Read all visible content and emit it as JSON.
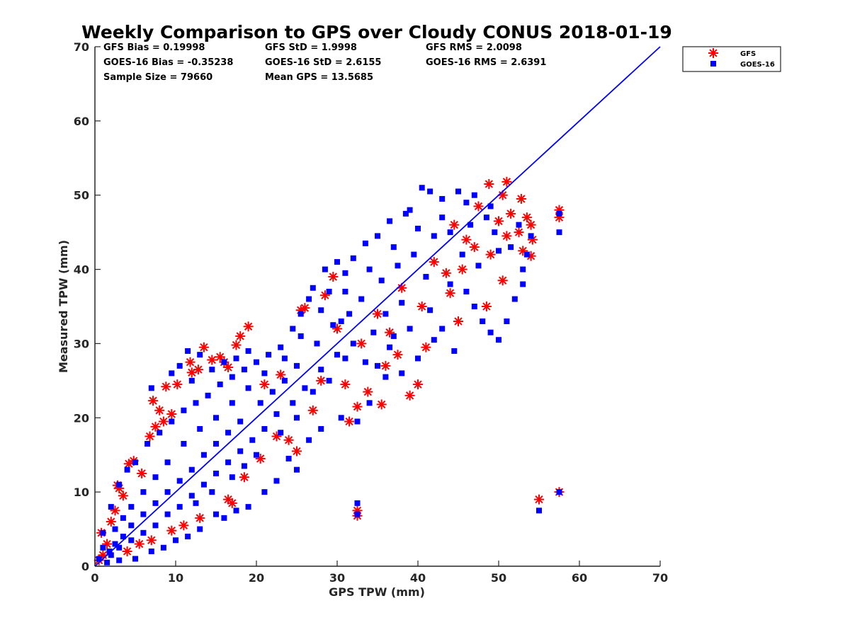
{
  "chart_data": {
    "type": "scatter",
    "title": "Weekly Comparison to GPS over Cloudy CONUS 2018-01-19",
    "xlabel": "GPS TPW (mm)",
    "ylabel": "Measured TPW (mm)",
    "xlim": [
      0,
      70
    ],
    "ylim": [
      0,
      70
    ],
    "xticks": [
      0,
      10,
      20,
      30,
      40,
      50,
      60,
      70
    ],
    "yticks": [
      0,
      10,
      20,
      30,
      40,
      50,
      60,
      70
    ],
    "grid": false,
    "legend_position": "top-right",
    "stats": [
      "GFS Bias = 0.19998",
      "GFS StD = 1.9998",
      "GFS RMS = 2.0098",
      "GOES-16 Bias = -0.35238",
      "GOES-16 StD = 2.6155",
      "GOES-16 RMS = 2.6391",
      "Sample Size = 79660",
      "Mean GPS = 13.5685"
    ],
    "reference_line": {
      "x": [
        0,
        70
      ],
      "y": [
        0,
        70
      ],
      "color": "#0000ff"
    },
    "series": [
      {
        "name": "GFS",
        "marker": "asterisk",
        "color": "#ff0000",
        "points": [
          [
            4.8,
            14.2
          ],
          [
            4.2,
            13.8
          ],
          [
            2.8,
            10.9
          ],
          [
            3.0,
            10.5
          ],
          [
            5.8,
            12.5
          ],
          [
            7.2,
            22.3
          ],
          [
            8.8,
            24.2
          ],
          [
            8.0,
            21.0
          ],
          [
            6.8,
            17.5
          ],
          [
            7.5,
            18.8
          ],
          [
            10.2,
            24.5
          ],
          [
            11.8,
            27.5
          ],
          [
            12.0,
            26.1
          ],
          [
            13.5,
            29.5
          ],
          [
            14.5,
            27.8
          ],
          [
            15.5,
            28.2
          ],
          [
            16.5,
            26.8
          ],
          [
            17.5,
            29.8
          ],
          [
            18.0,
            31.0
          ],
          [
            19.0,
            32.3
          ],
          [
            16.0,
            27.5
          ],
          [
            12.8,
            26.5
          ],
          [
            9.5,
            20.5
          ],
          [
            8.5,
            19.5
          ],
          [
            26.0,
            34.8
          ],
          [
            25.5,
            34.5
          ],
          [
            28.5,
            36.5
          ],
          [
            29.5,
            39.0
          ],
          [
            31.0,
            24.5
          ],
          [
            32.5,
            21.5
          ],
          [
            31.5,
            19.5
          ],
          [
            33.8,
            23.5
          ],
          [
            35.5,
            21.8
          ],
          [
            37.5,
            28.5
          ],
          [
            36.0,
            27.0
          ],
          [
            39.0,
            23.0
          ],
          [
            40.0,
            24.5
          ],
          [
            41.0,
            29.5
          ],
          [
            43.5,
            39.5
          ],
          [
            44.0,
            36.8
          ],
          [
            45.0,
            33.0
          ],
          [
            45.5,
            40.0
          ],
          [
            48.8,
            51.5
          ],
          [
            51.0,
            51.8
          ],
          [
            50.5,
            50.0
          ],
          [
            52.8,
            49.5
          ],
          [
            51.5,
            47.5
          ],
          [
            52.5,
            45.0
          ],
          [
            53.5,
            47.0
          ],
          [
            54.0,
            46.0
          ],
          [
            54.2,
            44.0
          ],
          [
            53.0,
            42.5
          ],
          [
            54.0,
            41.8
          ],
          [
            51.0,
            44.5
          ],
          [
            50.0,
            46.5
          ],
          [
            49.0,
            42.0
          ],
          [
            50.5,
            38.5
          ],
          [
            48.5,
            35.0
          ],
          [
            47.0,
            43.0
          ],
          [
            32.5,
            6.8
          ],
          [
            32.5,
            7.5
          ],
          [
            55.0,
            9.0
          ],
          [
            57.5,
            10.0
          ],
          [
            57.5,
            48.0
          ],
          [
            57.5,
            47.0
          ],
          [
            22.5,
            17.5
          ],
          [
            25.0,
            15.5
          ],
          [
            24.0,
            17.0
          ],
          [
            20.5,
            14.5
          ],
          [
            17.0,
            8.5
          ],
          [
            16.5,
            9.0
          ],
          [
            13.0,
            6.5
          ],
          [
            11.0,
            5.5
          ],
          [
            9.5,
            4.8
          ],
          [
            1.5,
            3.0
          ],
          [
            0.8,
            4.5
          ],
          [
            2.5,
            7.5
          ],
          [
            3.5,
            9.5
          ],
          [
            2.0,
            6.0
          ],
          [
            5.5,
            3.0
          ],
          [
            7.0,
            3.5
          ],
          [
            4.0,
            2.0
          ],
          [
            1.0,
            1.5
          ],
          [
            0.5,
            0.8
          ],
          [
            21.0,
            24.5
          ],
          [
            23.0,
            25.8
          ],
          [
            18.5,
            12.0
          ],
          [
            27.0,
            21.0
          ],
          [
            28.0,
            25.0
          ],
          [
            30.0,
            32.0
          ],
          [
            33.0,
            30.0
          ],
          [
            35.0,
            34.0
          ],
          [
            38.0,
            37.5
          ],
          [
            42.0,
            41.0
          ],
          [
            46.0,
            44.0
          ],
          [
            47.5,
            48.5
          ],
          [
            44.5,
            46.0
          ],
          [
            40.5,
            35.0
          ],
          [
            36.5,
            31.5
          ]
        ]
      },
      {
        "name": "GOES-16",
        "marker": "square",
        "color": "#0000ff",
        "points": [
          [
            40.5,
            51.0
          ],
          [
            41.5,
            50.5
          ],
          [
            43.0,
            49.5
          ],
          [
            45.0,
            50.5
          ],
          [
            47.0,
            50.0
          ],
          [
            38.5,
            47.5
          ],
          [
            36.5,
            46.5
          ],
          [
            35.0,
            44.5
          ],
          [
            33.5,
            43.5
          ],
          [
            32.0,
            41.5
          ],
          [
            31.0,
            39.5
          ],
          [
            29.0,
            37.0
          ],
          [
            27.0,
            37.5
          ],
          [
            28.5,
            40.0
          ],
          [
            30.0,
            41.0
          ],
          [
            26.5,
            36.0
          ],
          [
            25.5,
            34.0
          ],
          [
            24.5,
            32.0
          ],
          [
            23.0,
            29.5
          ],
          [
            21.5,
            28.5
          ],
          [
            20.0,
            27.5
          ],
          [
            18.5,
            26.5
          ],
          [
            17.0,
            25.5
          ],
          [
            15.5,
            24.5
          ],
          [
            14.0,
            23.0
          ],
          [
            12.5,
            22.0
          ],
          [
            11.0,
            21.0
          ],
          [
            9.5,
            19.5
          ],
          [
            8.0,
            18.0
          ],
          [
            6.5,
            16.5
          ],
          [
            5.0,
            14.0
          ],
          [
            4.0,
            13.0
          ],
          [
            3.0,
            11.0
          ],
          [
            2.0,
            8.0
          ],
          [
            1.0,
            4.5
          ],
          [
            7.0,
            24.0
          ],
          [
            9.5,
            26.0
          ],
          [
            10.5,
            27.0
          ],
          [
            11.5,
            29.0
          ],
          [
            13.0,
            28.5
          ],
          [
            12.0,
            25.0
          ],
          [
            14.5,
            26.5
          ],
          [
            16.0,
            27.5
          ],
          [
            17.5,
            28.0
          ],
          [
            19.0,
            29.0
          ],
          [
            46.0,
            37.0
          ],
          [
            47.0,
            35.0
          ],
          [
            48.0,
            33.0
          ],
          [
            49.0,
            31.5
          ],
          [
            50.0,
            30.5
          ],
          [
            51.0,
            33.0
          ],
          [
            52.0,
            36.0
          ],
          [
            53.0,
            38.0
          ],
          [
            53.5,
            42.0
          ],
          [
            54.0,
            44.5
          ],
          [
            43.0,
            32.0
          ],
          [
            44.5,
            29.0
          ],
          [
            42.0,
            30.5
          ],
          [
            40.0,
            28.0
          ],
          [
            38.0,
            26.0
          ],
          [
            36.0,
            25.5
          ],
          [
            34.0,
            22.0
          ],
          [
            32.5,
            19.5
          ],
          [
            30.5,
            20.0
          ],
          [
            28.0,
            18.5
          ],
          [
            26.5,
            17.0
          ],
          [
            25.0,
            13.0
          ],
          [
            24.0,
            14.5
          ],
          [
            22.5,
            11.5
          ],
          [
            21.0,
            10.0
          ],
          [
            19.0,
            8.0
          ],
          [
            17.5,
            7.5
          ],
          [
            16.0,
            6.5
          ],
          [
            15.0,
            7.0
          ],
          [
            13.0,
            5.0
          ],
          [
            11.5,
            4.0
          ],
          [
            10.0,
            3.5
          ],
          [
            8.5,
            2.5
          ],
          [
            7.0,
            2.0
          ],
          [
            5.0,
            1.0
          ],
          [
            3.0,
            0.8
          ],
          [
            1.5,
            0.5
          ],
          [
            0.5,
            1.0
          ],
          [
            32.5,
            8.5
          ],
          [
            32.5,
            7.0
          ],
          [
            55.0,
            7.5
          ],
          [
            57.5,
            10.0
          ],
          [
            57.5,
            45.0
          ],
          [
            57.5,
            47.5
          ],
          [
            53.0,
            40.0
          ],
          [
            51.5,
            43.0
          ],
          [
            49.5,
            45.0
          ],
          [
            48.5,
            47.0
          ],
          [
            46.5,
            46.0
          ],
          [
            44.0,
            45.0
          ],
          [
            42.0,
            44.5
          ],
          [
            39.5,
            42.0
          ],
          [
            37.5,
            40.5
          ],
          [
            35.5,
            38.5
          ],
          [
            33.0,
            36.0
          ],
          [
            31.5,
            34.0
          ],
          [
            29.5,
            32.5
          ],
          [
            27.5,
            30.0
          ],
          [
            25.0,
            27.0
          ],
          [
            23.5,
            25.0
          ],
          [
            22.0,
            23.5
          ],
          [
            20.5,
            22.0
          ],
          [
            18.0,
            19.5
          ],
          [
            16.5,
            18.0
          ],
          [
            15.0,
            16.5
          ],
          [
            13.5,
            15.0
          ],
          [
            12.0,
            13.0
          ],
          [
            10.5,
            11.5
          ],
          [
            9.0,
            10.0
          ],
          [
            7.5,
            8.5
          ],
          [
            6.0,
            7.0
          ],
          [
            4.5,
            5.5
          ],
          [
            3.5,
            4.0
          ],
          [
            2.5,
            3.0
          ],
          [
            1.8,
            2.0
          ],
          [
            45.5,
            42.0
          ],
          [
            41.0,
            39.0
          ],
          [
            38.0,
            35.5
          ],
          [
            36.0,
            34.0
          ],
          [
            34.5,
            31.5
          ],
          [
            30.0,
            28.5
          ],
          [
            28.0,
            26.5
          ],
          [
            26.0,
            24.0
          ],
          [
            24.5,
            22.0
          ],
          [
            22.5,
            20.5
          ],
          [
            21.0,
            18.5
          ],
          [
            19.5,
            17.0
          ],
          [
            18.0,
            15.5
          ],
          [
            16.5,
            14.0
          ],
          [
            15.0,
            12.5
          ],
          [
            13.5,
            11.0
          ],
          [
            12.0,
            9.5
          ],
          [
            10.5,
            8.0
          ],
          [
            9.0,
            7.0
          ],
          [
            7.5,
            5.5
          ],
          [
            6.0,
            4.5
          ],
          [
            4.5,
            3.5
          ],
          [
            3.0,
            2.5
          ],
          [
            2.0,
            1.5
          ],
          [
            1.0,
            2.5
          ],
          [
            43.0,
            47.0
          ],
          [
            40.0,
            45.5
          ],
          [
            37.0,
            43.0
          ],
          [
            34.0,
            40.0
          ],
          [
            31.0,
            37.0
          ],
          [
            28.0,
            34.5
          ],
          [
            25.5,
            31.0
          ],
          [
            23.5,
            28.0
          ],
          [
            21.0,
            26.0
          ],
          [
            19.0,
            24.0
          ],
          [
            17.0,
            22.0
          ],
          [
            15.0,
            20.0
          ],
          [
            13.0,
            18.5
          ],
          [
            11.0,
            16.5
          ],
          [
            9.0,
            14.0
          ],
          [
            7.5,
            12.0
          ],
          [
            6.0,
            10.0
          ],
          [
            4.5,
            8.0
          ],
          [
            3.5,
            6.5
          ],
          [
            2.5,
            5.0
          ],
          [
            36.5,
            29.5
          ],
          [
            39.0,
            32.0
          ],
          [
            41.5,
            34.5
          ],
          [
            44.0,
            38.0
          ],
          [
            47.5,
            40.5
          ],
          [
            50.0,
            42.5
          ],
          [
            52.5,
            46.0
          ],
          [
            49.0,
            48.5
          ],
          [
            46.0,
            49.0
          ],
          [
            39.0,
            48.0
          ],
          [
            30.5,
            33.0
          ],
          [
            32.0,
            30.0
          ],
          [
            33.5,
            27.5
          ],
          [
            35.0,
            27.0
          ],
          [
            37.0,
            31.0
          ],
          [
            20.0,
            15.0
          ],
          [
            18.5,
            13.5
          ],
          [
            17.0,
            12.0
          ],
          [
            14.5,
            10.0
          ],
          [
            12.5,
            8.5
          ],
          [
            23.0,
            18.0
          ],
          [
            25.0,
            20.0
          ],
          [
            27.0,
            23.5
          ],
          [
            29.0,
            25.0
          ],
          [
            31.0,
            28.0
          ]
        ]
      }
    ]
  }
}
